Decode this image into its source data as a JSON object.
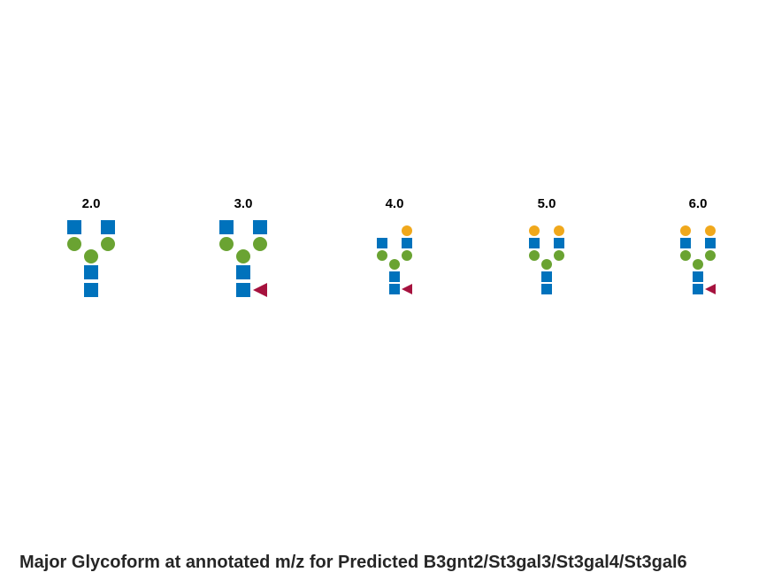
{
  "title": "Major Glycoform at annotated m/z for Predicted B3gnt2/St3gal3/St3gal4/St3gal6",
  "colors": {
    "GlcNAc": "#0072BC",
    "Man": "#6AA332",
    "Gal": "#F0A81C",
    "Fuc": "#A6123E"
  },
  "glycans": [
    {
      "label": "2.0",
      "scale": "large",
      "core_fucose": false,
      "antennae": [
        "GlcNAc",
        "GlcNAc"
      ],
      "terminal": []
    },
    {
      "label": "3.0",
      "scale": "large",
      "core_fucose": true,
      "antennae": [
        "GlcNAc",
        "GlcNAc"
      ],
      "terminal": []
    },
    {
      "label": "4.0",
      "scale": "small",
      "core_fucose": true,
      "antennae": [
        "GlcNAc",
        "GlcNAc"
      ],
      "terminal": [
        null,
        "Gal"
      ]
    },
    {
      "label": "5.0",
      "scale": "small",
      "core_fucose": false,
      "antennae": [
        "GlcNAc",
        "GlcNAc"
      ],
      "terminal": [
        "Gal",
        "Gal"
      ]
    },
    {
      "label": "6.0",
      "scale": "small",
      "core_fucose": true,
      "antennae": [
        "GlcNAc",
        "GlcNAc"
      ],
      "terminal": [
        "Gal",
        "Gal"
      ]
    }
  ]
}
